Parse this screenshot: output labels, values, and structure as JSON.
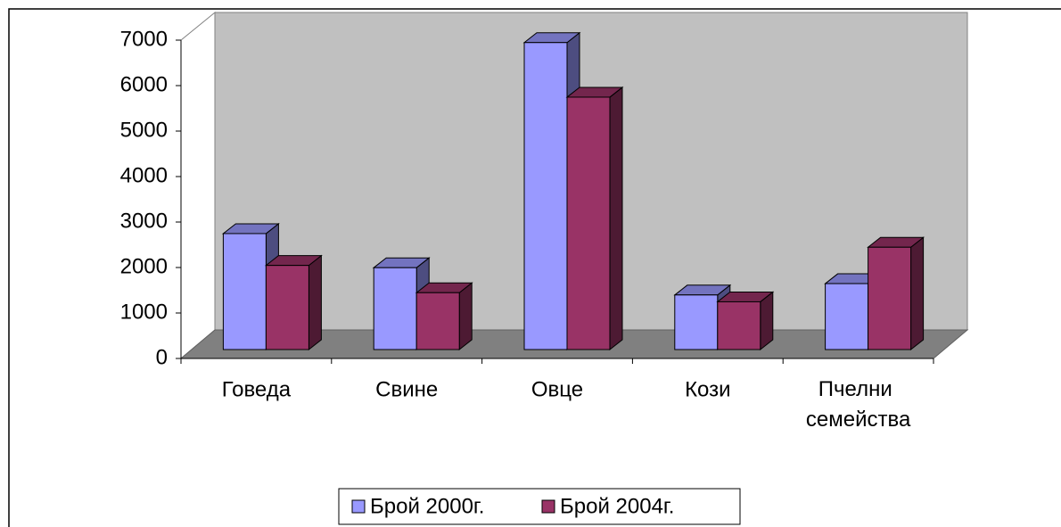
{
  "chart_data": {
    "type": "bar3d",
    "categories": [
      "Говеда",
      "Свине",
      "Овце",
      "Кози",
      "Пчелни семейства"
    ],
    "series": [
      {
        "name": "Брой 2000г.",
        "color": "#9999ff",
        "values": [
          2550,
          1800,
          6750,
          1200,
          1450
        ]
      },
      {
        "name": "Брой 2004г.",
        "color": "#993366",
        "values": [
          1850,
          1250,
          5550,
          1050,
          2250
        ]
      }
    ],
    "ylim": [
      0,
      7000
    ],
    "yticks": [
      0,
      1000,
      2000,
      3000,
      4000,
      5000,
      6000,
      7000
    ],
    "legend": "bottom"
  }
}
